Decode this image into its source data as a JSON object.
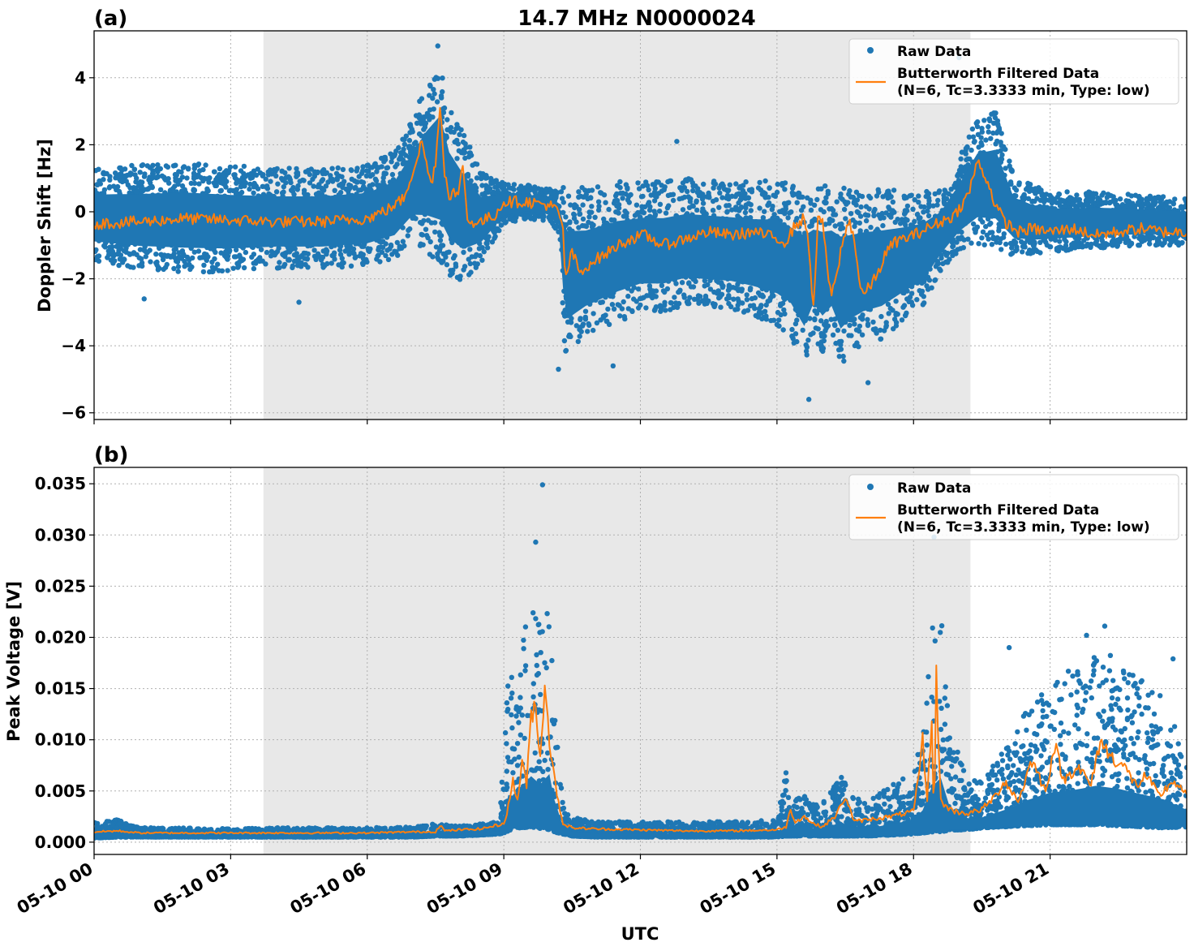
{
  "figure": {
    "title": "14.7 MHz N0000024",
    "xlabel": "UTC",
    "x_ticks": [
      "05-10 00",
      "05-10 03",
      "05-10 06",
      "05-10 09",
      "05-10 12",
      "05-10 15",
      "05-10 18",
      "05-10 21"
    ],
    "night_shading": {
      "from_hour": 3.72,
      "to_hour": 19.25,
      "color": "#e8e8e8"
    },
    "colors": {
      "raw": "#1f77b4",
      "filtered": "#ff7f0e",
      "grid": "#b0b0b0"
    }
  },
  "chart_data": [
    {
      "type": "scatter",
      "panel_label": "(a)",
      "ylabel": "Doppler Shift [Hz]",
      "xlim_hours": [
        0,
        24
      ],
      "ylim": [
        -6.2,
        5.4
      ],
      "y_ticks": [
        4,
        2,
        0,
        -2,
        -4,
        -6
      ],
      "y_tick_labels": [
        "4",
        "2",
        "0",
        "−2",
        "−4",
        "−6"
      ],
      "legend": {
        "placement": "upper right",
        "entries": [
          "Raw Data",
          "Butterworth Filtered Data",
          "(N=6, Tc=3.3333 min, Type: low)"
        ]
      },
      "series": [
        {
          "name": "Raw Data",
          "kind": "scatter-band",
          "x_hours": [
            0,
            1,
            2,
            3,
            4,
            5,
            6,
            6.6,
            7,
            7.3,
            7.6,
            7.8,
            8.1,
            8.5,
            9,
            9.5,
            10,
            10.2,
            10.35,
            10.8,
            11.5,
            12,
            12.5,
            13,
            14,
            14.5,
            15,
            15.3,
            15.6,
            15.8,
            16,
            16.2,
            16.4,
            16.6,
            16.9,
            17.3,
            17.8,
            18.2,
            18.6,
            19,
            19.4,
            19.8,
            20.2,
            20.6,
            21,
            22,
            23,
            24
          ],
          "upper": [
            1.3,
            1.4,
            1.5,
            1.4,
            1.3,
            1.3,
            1.4,
            1.8,
            2.8,
            3.8,
            4.6,
            3.2,
            2.4,
            1.2,
            0.9,
            0.8,
            0.7,
            0.6,
            0.9,
            0.7,
            0.9,
            0.9,
            0.9,
            1.0,
            0.9,
            0.9,
            1.0,
            0.8,
            0.8,
            0.7,
            0.8,
            0.7,
            0.8,
            0.7,
            0.7,
            0.7,
            0.6,
            0.6,
            0.7,
            1.6,
            2.8,
            3.0,
            1.1,
            0.8,
            0.6,
            0.6,
            0.5,
            0.4
          ],
          "lower": [
            -1.5,
            -1.7,
            -1.8,
            -1.8,
            -1.7,
            -1.7,
            -1.6,
            -1.4,
            -0.9,
            -1.2,
            -1.6,
            -1.9,
            -2.1,
            -1.5,
            -0.4,
            -0.2,
            -0.3,
            -0.6,
            -4.4,
            -3.8,
            -3.3,
            -3.0,
            -3.0,
            -2.8,
            -2.9,
            -3.1,
            -3.4,
            -3.7,
            -4.6,
            -3.7,
            -4.2,
            -3.8,
            -4.7,
            -4.3,
            -4.0,
            -3.8,
            -3.2,
            -2.8,
            -1.8,
            -1.2,
            -1.0,
            -1.1,
            -1.3,
            -1.3,
            -1.2,
            -1.1,
            -1.0,
            -1.0
          ],
          "outliers": [
            [
              1.1,
              -2.6
            ],
            [
              4.5,
              -2.7
            ],
            [
              7.55,
              4.95
            ],
            [
              10.2,
              -4.7
            ],
            [
              11.4,
              -4.6
            ],
            [
              12.8,
              2.1
            ],
            [
              15.7,
              -5.6
            ],
            [
              17.0,
              -5.1
            ],
            [
              19.0,
              4.6
            ]
          ]
        },
        {
          "name": "Butterworth Filtered Data",
          "kind": "line",
          "x_hours": [
            0,
            1,
            2,
            3,
            4,
            5,
            6,
            6.5,
            6.8,
            7.0,
            7.2,
            7.4,
            7.5,
            7.6,
            7.7,
            7.8,
            7.9,
            8.0,
            8.1,
            8.2,
            8.5,
            8.8,
            9.0,
            9.5,
            10.0,
            10.2,
            10.3,
            10.35,
            10.5,
            10.7,
            10.9,
            11.2,
            11.5,
            11.8,
            12.1,
            12.5,
            13.0,
            13.5,
            14.0,
            14.5,
            15.0,
            15.2,
            15.4,
            15.6,
            15.7,
            15.8,
            15.9,
            16.0,
            16.1,
            16.2,
            16.3,
            16.4,
            16.5,
            16.6,
            16.7,
            16.8,
            16.9,
            17.0,
            17.2,
            17.4,
            17.6,
            17.8,
            18.0,
            18.3,
            18.6,
            18.9,
            19.2,
            19.4,
            19.6,
            19.8,
            20.0,
            20.3,
            20.6,
            21.0,
            21.5,
            22.0,
            22.5,
            23.0,
            23.5,
            24.0
          ],
          "values": [
            -0.35,
            -0.3,
            -0.2,
            -0.25,
            -0.3,
            -0.3,
            -0.2,
            0.1,
            0.4,
            1.2,
            2.1,
            0.8,
            1.5,
            3.2,
            1.2,
            0.5,
            0.6,
            0.4,
            1.5,
            -0.3,
            -0.3,
            -0.1,
            0.3,
            0.3,
            0.2,
            0.0,
            -0.6,
            -2.0,
            -1.2,
            -1.9,
            -1.5,
            -1.3,
            -1.0,
            -0.8,
            -0.7,
            -1.0,
            -0.8,
            -0.6,
            -0.7,
            -0.6,
            -0.8,
            -0.9,
            -0.4,
            -0.2,
            -1.0,
            -2.9,
            -0.3,
            -0.2,
            -1.7,
            -2.5,
            -2.0,
            -1.2,
            -0.6,
            -0.3,
            -0.8,
            -2.0,
            -2.5,
            -2.3,
            -1.9,
            -1.2,
            -0.9,
            -0.8,
            -0.7,
            -0.5,
            -0.3,
            -0.1,
            0.5,
            1.5,
            1.0,
            0.2,
            -0.3,
            -0.6,
            -0.5,
            -0.6,
            -0.5,
            -0.7,
            -0.6,
            -0.5,
            -0.6,
            -0.6
          ]
        }
      ]
    },
    {
      "type": "scatter",
      "panel_label": "(b)",
      "ylabel": "Peak Voltage [V]",
      "xlim_hours": [
        0,
        24
      ],
      "ylim": [
        -0.0012,
        0.0366
      ],
      "y_ticks": [
        0.035,
        0.03,
        0.025,
        0.02,
        0.015,
        0.01,
        0.005,
        0.0
      ],
      "y_tick_labels": [
        "0.035",
        "0.030",
        "0.025",
        "0.020",
        "0.015",
        "0.010",
        "0.005",
        "0.000"
      ],
      "legend": {
        "placement": "upper right",
        "entries": [
          "Raw Data",
          "Butterworth Filtered Data",
          "(N=6, Tc=3.3333 min, Type: low)"
        ]
      },
      "series": [
        {
          "name": "Raw Data",
          "kind": "scatter-band",
          "x_hours": [
            0,
            0.5,
            1,
            2,
            3,
            4,
            5,
            6,
            7,
            7.5,
            8,
            8.5,
            8.9,
            9.0,
            9.1,
            9.2,
            9.4,
            9.6,
            9.8,
            10.0,
            10.1,
            10.3,
            10.5,
            11,
            12,
            13,
            14,
            15,
            15.2,
            15.3,
            15.4,
            15.6,
            15.8,
            16.2,
            16.4,
            16.6,
            17,
            17.5,
            18.0,
            18.2,
            18.4,
            18.6,
            18.8,
            19.0,
            19.2,
            19.5,
            20.0,
            20.5,
            21.0,
            21.5,
            22.0,
            22.5,
            23.0,
            23.5,
            24.0
          ],
          "upper": [
            0.0019,
            0.0022,
            0.0014,
            0.0014,
            0.0013,
            0.0014,
            0.0014,
            0.0014,
            0.0015,
            0.0018,
            0.0016,
            0.0018,
            0.002,
            0.009,
            0.017,
            0.016,
            0.02,
            0.024,
            0.021,
            0.026,
            0.016,
            0.004,
            0.0025,
            0.002,
            0.002,
            0.002,
            0.002,
            0.0022,
            0.007,
            0.003,
            0.004,
            0.005,
            0.004,
            0.005,
            0.007,
            0.0045,
            0.004,
            0.0055,
            0.007,
            0.011,
            0.021,
            0.025,
            0.011,
            0.009,
            0.006,
            0.006,
            0.009,
            0.013,
            0.016,
            0.017,
            0.019,
            0.018,
            0.016,
            0.014,
            0.009
          ],
          "lower": [
            0.0004,
            0.0005,
            0.0005,
            0.0005,
            0.0005,
            0.0005,
            0.0005,
            0.0005,
            0.0005,
            0.0006,
            0.0006,
            0.0007,
            0.0008,
            0.0009,
            0.0011,
            0.0013,
            0.0014,
            0.0015,
            0.0013,
            0.0012,
            0.001,
            0.0008,
            0.0006,
            0.0005,
            0.0005,
            0.0005,
            0.0005,
            0.0005,
            0.0006,
            0.0006,
            0.0006,
            0.0006,
            0.0006,
            0.0006,
            0.0006,
            0.0006,
            0.0006,
            0.0007,
            0.0008,
            0.0009,
            0.001,
            0.001,
            0.0012,
            0.0012,
            0.0012,
            0.0014,
            0.0015,
            0.0016,
            0.0017,
            0.0017,
            0.0017,
            0.0016,
            0.0015,
            0.0014,
            0.0015
          ],
          "outliers": [
            [
              9.85,
              0.0349
            ],
            [
              9.7,
              0.0293
            ],
            [
              18.45,
              0.0298
            ],
            [
              22.2,
              0.0211
            ],
            [
              21.8,
              0.0202
            ],
            [
              20.1,
              0.019
            ],
            [
              23.7,
              0.0179
            ]
          ]
        },
        {
          "name": "Butterworth Filtered Data",
          "kind": "line",
          "x_hours": [
            0,
            0.5,
            1,
            2,
            3,
            4,
            5,
            6,
            7,
            7.5,
            7.6,
            7.7,
            8,
            8.5,
            9.0,
            9.1,
            9.2,
            9.3,
            9.4,
            9.5,
            9.6,
            9.7,
            9.8,
            9.9,
            10.0,
            10.1,
            10.2,
            10.3,
            10.5,
            11,
            12,
            13,
            14,
            15,
            15.2,
            15.3,
            15.4,
            15.6,
            15.8,
            16.0,
            16.3,
            16.5,
            16.7,
            17,
            17.5,
            18.0,
            18.1,
            18.2,
            18.3,
            18.4,
            18.45,
            18.5,
            18.55,
            18.6,
            18.7,
            18.9,
            19.2,
            19.5,
            19.8,
            20.0,
            20.3,
            20.6,
            20.9,
            21.1,
            21.3,
            21.6,
            21.9,
            22.1,
            22.3,
            22.6,
            22.9,
            23.1,
            23.4,
            23.7,
            24.0
          ],
          "values": [
            0.001,
            0.0011,
            0.0009,
            0.0009,
            0.0009,
            0.0009,
            0.0009,
            0.0009,
            0.001,
            0.001,
            0.0017,
            0.0011,
            0.0012,
            0.0013,
            0.0018,
            0.0035,
            0.006,
            0.004,
            0.008,
            0.0055,
            0.0125,
            0.0135,
            0.008,
            0.016,
            0.01,
            0.0065,
            0.004,
            0.0018,
            0.0014,
            0.0013,
            0.0012,
            0.0011,
            0.0011,
            0.0012,
            0.0015,
            0.0032,
            0.002,
            0.0025,
            0.0018,
            0.0015,
            0.0026,
            0.0045,
            0.002,
            0.0022,
            0.0025,
            0.003,
            0.006,
            0.01,
            0.004,
            0.0125,
            0.0008,
            0.016,
            0.01,
            0.004,
            0.0035,
            0.003,
            0.0028,
            0.0032,
            0.0045,
            0.006,
            0.004,
            0.008,
            0.005,
            0.0095,
            0.006,
            0.0075,
            0.0055,
            0.01,
            0.0085,
            0.0075,
            0.0055,
            0.0065,
            0.0045,
            0.006,
            0.0045
          ]
        }
      ]
    }
  ]
}
